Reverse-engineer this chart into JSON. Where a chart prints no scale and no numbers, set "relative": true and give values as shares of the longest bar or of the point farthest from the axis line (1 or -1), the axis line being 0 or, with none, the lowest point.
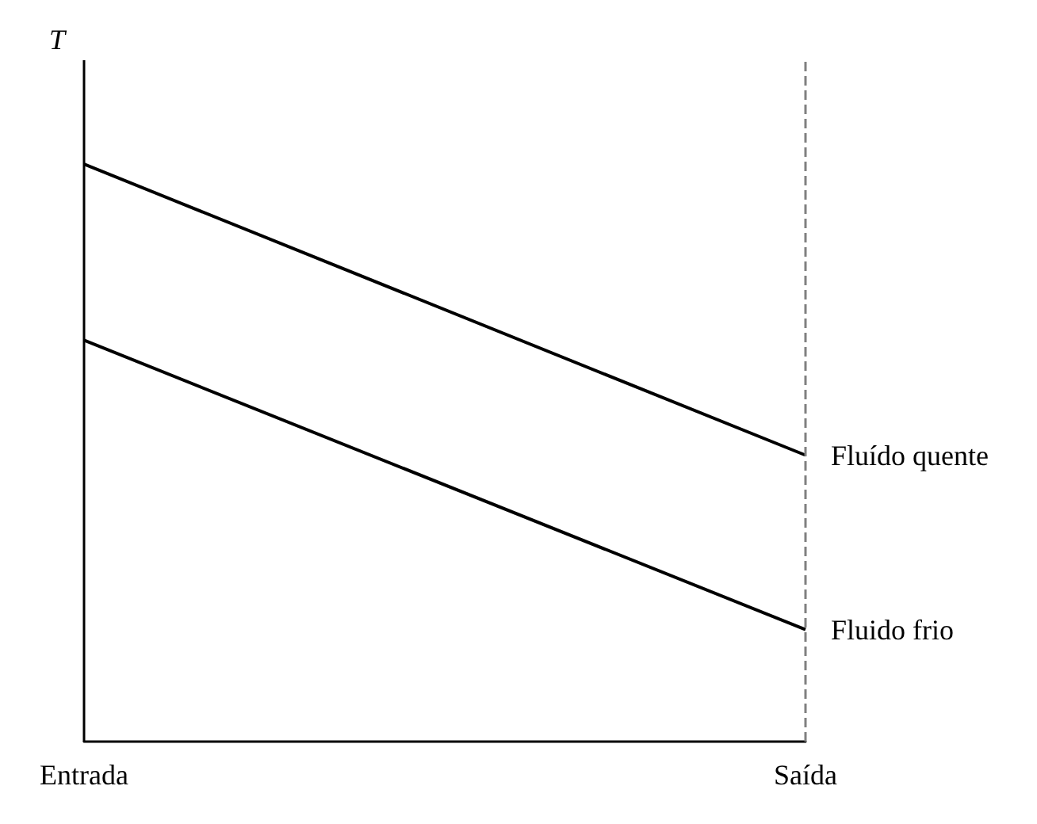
{
  "chart_data": {
    "type": "line",
    "relative": true,
    "ylabel": "T",
    "categories": [
      "Entrada",
      "Saída"
    ],
    "series": [
      {
        "name": "Fluído quente",
        "color": "#000000",
        "values": [
          1,
          0.496
        ]
      },
      {
        "name": "Fluido frio",
        "color": "#000000",
        "values": [
          0.695,
          0.194
        ]
      }
    ],
    "ref_lines": [
      {
        "axis": "x",
        "value": "Entrada",
        "color": "#000000",
        "line_style": "solid"
      },
      {
        "axis": "x",
        "value": "Saída",
        "color": "#808080",
        "line_style": "dashed"
      }
    ],
    "legend": false,
    "grid": false,
    "marker": "none",
    "line_style": "solid"
  }
}
